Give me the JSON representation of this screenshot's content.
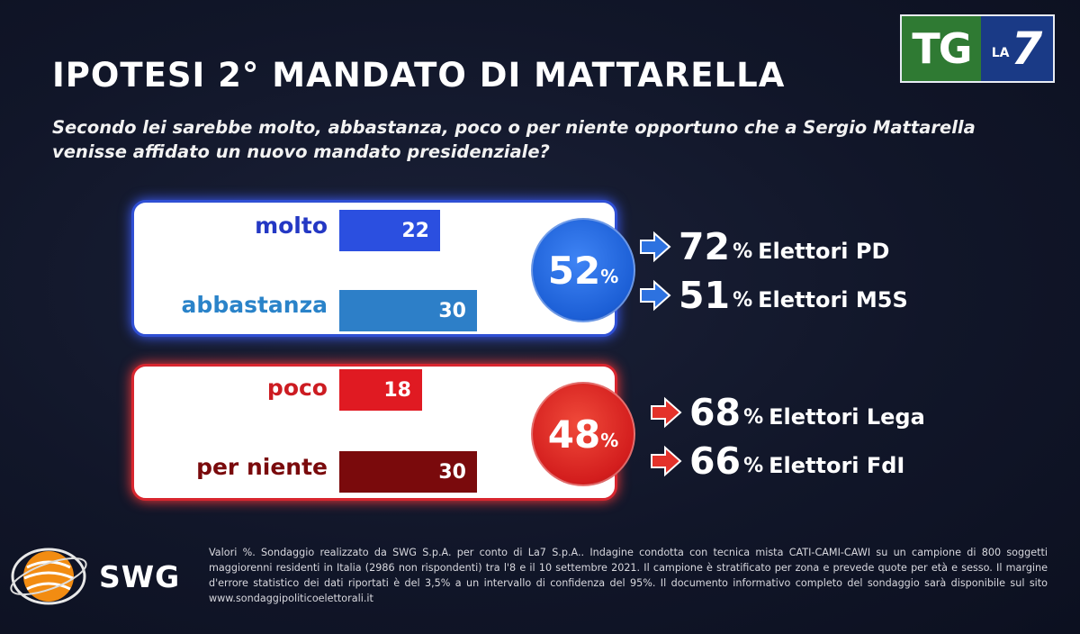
{
  "brand": {
    "tg": "TG",
    "la": "LA",
    "seven": "7",
    "pollster": "SWG"
  },
  "title": "IPOTESI 2° MANDATO DI MATTARELLA",
  "question": "Secondo lei sarebbe molto, abbastanza, poco o per niente opportuno che a Sergio Mattarella venisse affidato un nuovo mandato presidenziale?",
  "chart_data": {
    "type": "bar",
    "orientation": "horizontal",
    "unit": "%",
    "categories": [
      "molto",
      "abbastanza",
      "poco",
      "per niente"
    ],
    "values": [
      22,
      30,
      18,
      30
    ],
    "colors": [
      "#2b4fe0",
      "#2d7fc8",
      "#e01a22",
      "#7a0a0c"
    ],
    "label_colors": [
      "#2438c4",
      "#2a83c9",
      "#cc1c22",
      "#7a0a0c"
    ],
    "groups": [
      {
        "total": "52",
        "unit": "%",
        "members": [
          "molto",
          "abbastanza"
        ],
        "color": "#1c5fd6"
      },
      {
        "total": "48",
        "unit": "%",
        "members": [
          "poco",
          "per niente"
        ],
        "color": "#d31d1d"
      }
    ],
    "voters": [
      {
        "value": "72",
        "unit": "%",
        "label": "Elettori PD",
        "group": 0
      },
      {
        "value": "51",
        "unit": "%",
        "label": "Elettori M5S",
        "group": 0
      },
      {
        "value": "68",
        "unit": "%",
        "label": "Elettori Lega",
        "group": 1
      },
      {
        "value": "66",
        "unit": "%",
        "label": "Elettori FdI",
        "group": 1
      }
    ]
  },
  "footnote": "Valori %. Sondaggio realizzato da SWG S.p.A. per conto di La7 S.p.A.. Indagine condotta con tecnica mista CATI-CAMI-CAWI su un campione di 800 soggetti maggiorenni residenti in Italia (2986 non rispondenti) tra l'8 e il 10 settembre 2021. Il campione è stratificato per zona e prevede quote per età e sesso. Il margine d'errore statistico dei dati riportati è del 3,5% a un intervallo di confidenza del 95%. Il documento informativo completo del sondaggio sarà disponibile sul sito www.sondaggipoliticoelettorali.it"
}
